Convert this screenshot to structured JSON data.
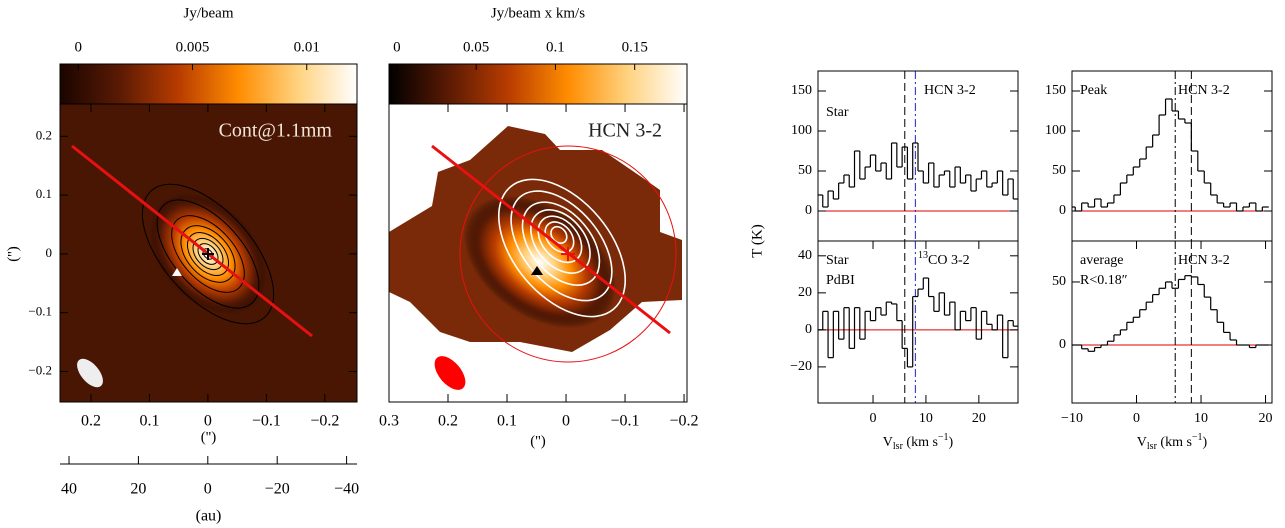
{
  "chart_data": [
    {
      "type": "image",
      "colorbar_label": "Jy/beam",
      "colorbar_lim": [
        -0.0008,
        0.0122
      ],
      "colorbar_ticks": [
        0,
        0.005,
        0.01
      ],
      "colormap": [
        "#1a0500",
        "#5a1a04",
        "#b83c00",
        "#ff8c00",
        "#ffd27f",
        "#ffffff"
      ],
      "annotation": "Cont@1.1mm",
      "xlabel": "('')",
      "ylabel": "('')",
      "xlim": [
        0.253,
        -0.255
      ],
      "ylim": [
        -0.252,
        0.255
      ],
      "xticks": [
        0.2,
        0.1,
        0,
        {
          "value": -0.1,
          "label": "−0.1"
        },
        {
          "value": -0.2,
          "label": "−0.2"
        }
      ],
      "yticks": [
        0.2,
        0.1,
        0,
        {
          "value": -0.1,
          "label": "−0.1"
        },
        {
          "value": -0.2,
          "label": "−0.2"
        }
      ],
      "x2label": "(au)",
      "x2lim": [
        42.6,
        -43
      ],
      "x2ticks": [
        40,
        20,
        0,
        {
          "value": -20,
          "label": "−20"
        },
        {
          "value": -40,
          "label": "−40"
        }
      ]
    },
    {
      "type": "image",
      "colorbar_label": "Jy/beam x km/s",
      "colorbar_lim": [
        -0.005,
        0.183
      ],
      "colorbar_ticks": [
        0,
        0.05,
        0.1,
        0.15
      ],
      "colormap": [
        "#000000",
        "#5a1a04",
        "#b83c00",
        "#ff8c00",
        "#ffd27f",
        "#ffffff"
      ],
      "annotation": "HCN 3-2",
      "xlabel": "('')",
      "xlim": [
        0.3,
        -0.205
      ],
      "xticks": [
        0.3,
        0.2,
        0.1,
        0,
        {
          "value": -0.1,
          "label": "−0.1"
        },
        {
          "value": -0.2,
          "label": "−0.2"
        }
      ]
    },
    {
      "type": "step",
      "ylabel": "T (K)",
      "labels": [
        {
          "text": "Star"
        },
        {
          "text": "HCN 3-2"
        }
      ],
      "xlim": [
        -10.4,
        27.4
      ],
      "ylim": [
        -37.5,
        175
      ],
      "yticks": [
        0,
        50,
        100,
        150
      ],
      "color": "#000000",
      "hline": {
        "y": 0,
        "color": "#e00000"
      },
      "vlines": [
        {
          "x": 6,
          "color": "#000000",
          "dash": "8,4"
        },
        {
          "x": 8,
          "color": "#2020d0",
          "dash": "8,3,2,3"
        }
      ],
      "x": [
        -10,
        -9,
        -8,
        -7,
        -6,
        -5,
        -4,
        -3,
        -2,
        -1,
        0,
        1,
        2,
        3,
        4,
        5,
        6,
        7,
        8,
        9,
        10,
        11,
        12,
        13,
        14,
        15,
        16,
        17,
        18,
        19,
        20,
        21,
        22,
        23,
        24,
        25,
        26,
        27
      ],
      "values": [
        20,
        5,
        25,
        15,
        35,
        45,
        30,
        75,
        40,
        55,
        70,
        50,
        60,
        40,
        85,
        55,
        80,
        40,
        85,
        50,
        35,
        60,
        30,
        45,
        50,
        30,
        55,
        35,
        45,
        25,
        40,
        50,
        30,
        35,
        50,
        20,
        40,
        15
      ]
    },
    {
      "type": "step",
      "labels": [
        {
          "text": "Star"
        },
        {
          "text": "PdBI"
        },
        {
          "sup": "13",
          "text": "CO 3-2"
        }
      ],
      "xlabel": {
        "main": "V",
        "sub": "lsr",
        "unit": " (km s",
        "sup": "−1",
        "close": ")"
      },
      "xlim": [
        -10.4,
        27.4
      ],
      "ylim": [
        -39.5,
        48
      ],
      "yticks": [
        {
          "value": -20,
          "label": "−20"
        },
        0,
        20,
        40
      ],
      "xticks": [
        0,
        10,
        20
      ],
      "color": "#000000",
      "hline": {
        "y": 0,
        "color": "#e00000"
      },
      "vlines": [
        {
          "x": 6,
          "color": "#000000",
          "dash": "8,4"
        },
        {
          "x": 8,
          "color": "#2020d0",
          "dash": "8,3,2,3"
        }
      ],
      "x": [
        -10,
        -9,
        -8,
        -7,
        -6,
        -5,
        -4,
        -3,
        -2,
        -1,
        0,
        1,
        2,
        3,
        4,
        5,
        6,
        7,
        8,
        9,
        10,
        11,
        12,
        13,
        14,
        15,
        16,
        17,
        18,
        19,
        20,
        21,
        22,
        23,
        24,
        25,
        26,
        27
      ],
      "values": [
        0,
        10,
        -15,
        10,
        -5,
        12,
        -10,
        12,
        -5,
        10,
        5,
        12,
        8,
        15,
        14,
        5,
        -10,
        -20,
        18,
        22,
        28,
        18,
        10,
        20,
        8,
        15,
        0,
        10,
        5,
        12,
        -5,
        10,
        3,
        0,
        8,
        -15,
        5,
        2
      ]
    },
    {
      "type": "step",
      "labels": [
        {
          "text": "Peak"
        },
        {
          "text": "HCN 3-2"
        }
      ],
      "xlim": [
        -10,
        21
      ],
      "ylim": [
        -37.5,
        175
      ],
      "yticks": [
        0,
        50,
        100,
        150
      ],
      "color": "#000000",
      "hline": {
        "y": 0,
        "color": "#e00000"
      },
      "vlines": [
        {
          "x": 6,
          "color": "#000000",
          "dash": "8,3,2,3"
        },
        {
          "x": 8.5,
          "color": "#000000",
          "dash": "8,4"
        }
      ],
      "x": [
        -10,
        -9,
        -8,
        -7,
        -6,
        -5,
        -4,
        -3,
        -2,
        -1,
        0,
        1,
        2,
        3,
        4,
        5,
        6,
        7,
        8,
        9,
        10,
        11,
        12,
        13,
        14,
        15,
        16,
        17,
        18,
        19,
        20
      ],
      "values": [
        5,
        0,
        10,
        5,
        15,
        5,
        10,
        20,
        35,
        45,
        55,
        65,
        80,
        95,
        120,
        140,
        125,
        115,
        110,
        75,
        50,
        35,
        20,
        10,
        5,
        10,
        0,
        5,
        10,
        0,
        5
      ]
    },
    {
      "type": "step",
      "labels": [
        {
          "text": "average"
        },
        {
          "text": "R<0.18″"
        },
        {
          "text": "HCN 3-2"
        }
      ],
      "xlabel": {
        "main": "V",
        "sub": "lsr",
        "unit": " (km s",
        "sup": "−1",
        "close": ")"
      },
      "xlim": [
        -10,
        21
      ],
      "ylim": [
        -46,
        82.5
      ],
      "yticks": [
        0,
        50
      ],
      "xticks": [
        {
          "value": -10,
          "label": "−10"
        },
        0,
        10,
        20
      ],
      "color": "#000000",
      "hline": {
        "y": 0,
        "color": "#e00000"
      },
      "vlines": [
        {
          "x": 6,
          "color": "#000000",
          "dash": "8,3,2,3"
        },
        {
          "x": 8.5,
          "color": "#000000",
          "dash": "8,4"
        }
      ],
      "x": [
        -10,
        -9,
        -8,
        -7,
        -6,
        -5,
        -4,
        -3,
        -2,
        -1,
        0,
        1,
        2,
        3,
        4,
        5,
        6,
        7,
        8,
        9,
        10,
        11,
        12,
        13,
        14,
        15,
        16,
        17,
        18,
        19,
        20
      ],
      "values": [
        0,
        0,
        -3,
        -5,
        -2,
        0,
        3,
        8,
        12,
        18,
        22,
        28,
        34,
        40,
        45,
        50,
        45,
        52,
        55,
        54,
        48,
        38,
        28,
        18,
        10,
        4,
        0,
        0,
        -2,
        0,
        0
      ]
    }
  ]
}
